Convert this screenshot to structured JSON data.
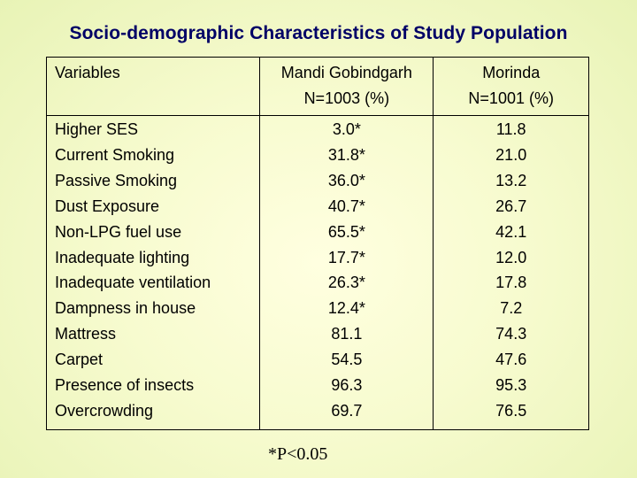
{
  "title": "Socio-demographic Characteristics of Study Population",
  "table": {
    "headers": {
      "variables": "Variables",
      "col1_line1": "Mandi Gobindgarh",
      "col1_line2": "N=1003 (%)",
      "col2_line1": "Morinda",
      "col2_line2": "N=1001 (%)"
    },
    "rows": [
      {
        "variable": "Higher SES",
        "mandi": "3.0*",
        "morinda": "11.8"
      },
      {
        "variable": "Current Smoking",
        "mandi": "31.8*",
        "morinda": "21.0"
      },
      {
        "variable": "Passive Smoking",
        "mandi": "36.0*",
        "morinda": "13.2"
      },
      {
        "variable": "Dust Exposure",
        "mandi": "40.7*",
        "morinda": "26.7"
      },
      {
        "variable": "Non-LPG fuel use",
        "mandi": "65.5*",
        "morinda": "42.1"
      },
      {
        "variable": "Inadequate lighting",
        "mandi": "17.7*",
        "morinda": "12.0"
      },
      {
        "variable": "Inadequate ventilation",
        "mandi": "26.3*",
        "morinda": "17.8"
      },
      {
        "variable": "Dampness in house",
        "mandi": "12.4*",
        "morinda": "7.2"
      },
      {
        "variable": "Mattress",
        "mandi": "81.1",
        "morinda": "74.3"
      },
      {
        "variable": "Carpet",
        "mandi": "54.5",
        "morinda": "47.6"
      },
      {
        "variable": "Presence of insects",
        "mandi": "96.3",
        "morinda": "95.3"
      },
      {
        "variable": "Overcrowding",
        "mandi": "69.7",
        "morinda": "76.5"
      }
    ]
  },
  "footnote": "*P<0.05"
}
